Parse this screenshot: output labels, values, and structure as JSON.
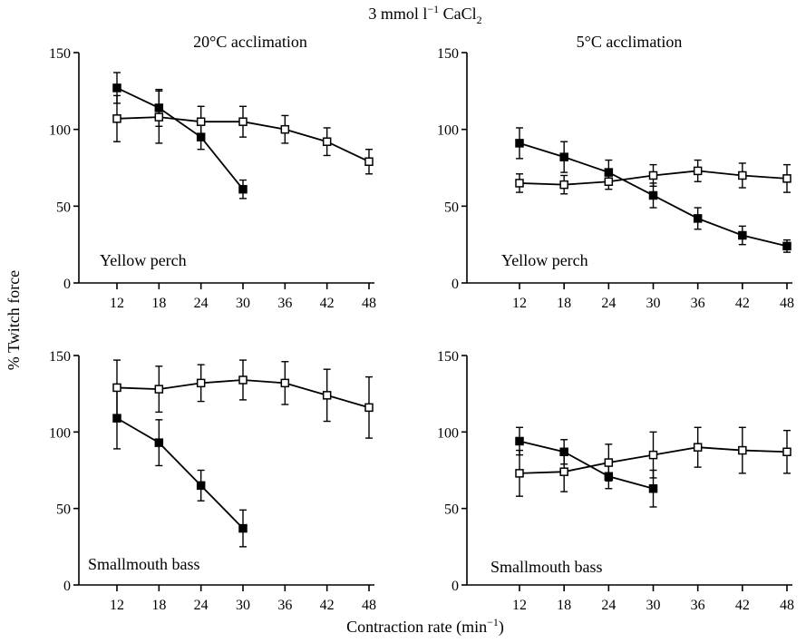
{
  "figure": {
    "title": "3 mmol l",
    "title_sup": "−1",
    "title_suffix": " CaCl",
    "title_sub": "2",
    "ylabel": "% Twitch force",
    "xlabel": "Contraction rate (min",
    "xlabel_sup": "−1",
    "xlabel_suffix": ")",
    "col_titles": [
      "20°C acclimation",
      "5°C acclimation"
    ]
  },
  "chart_data": [
    {
      "type": "line",
      "label": "Yellow perch",
      "column": "20°C acclimation",
      "x": [
        12,
        18,
        24,
        30,
        36,
        42,
        48
      ],
      "ylim": [
        0,
        150
      ],
      "yticks": [
        0,
        50,
        100,
        150
      ],
      "series": [
        {
          "marker": "filled",
          "x": [
            12,
            18,
            24,
            30
          ],
          "y": [
            127,
            114,
            95,
            61
          ],
          "err": [
            10,
            12,
            8,
            6
          ]
        },
        {
          "marker": "open",
          "x": [
            12,
            18,
            24,
            30,
            36,
            42,
            48
          ],
          "y": [
            107,
            108,
            105,
            105,
            100,
            92,
            79
          ],
          "err": [
            15,
            17,
            10,
            10,
            9,
            9,
            8
          ]
        }
      ]
    },
    {
      "type": "line",
      "label": "Yellow perch",
      "column": "5°C acclimation",
      "x": [
        12,
        18,
        24,
        30,
        36,
        42,
        48
      ],
      "ylim": [
        0,
        150
      ],
      "yticks": [
        0,
        50,
        100,
        150
      ],
      "series": [
        {
          "marker": "filled",
          "x": [
            12,
            18,
            24,
            30,
            36,
            42,
            48
          ],
          "y": [
            91,
            82,
            72,
            57,
            42,
            31,
            24
          ],
          "err": [
            10,
            10,
            8,
            8,
            7,
            6,
            4
          ]
        },
        {
          "marker": "open",
          "x": [
            12,
            18,
            24,
            30,
            36,
            42,
            48
          ],
          "y": [
            65,
            64,
            66,
            70,
            73,
            70,
            68
          ],
          "err": [
            6,
            6,
            5,
            7,
            7,
            8,
            9
          ]
        }
      ]
    },
    {
      "type": "line",
      "label": "Smallmouth bass",
      "column": "20°C acclimation",
      "x": [
        12,
        18,
        24,
        30,
        36,
        42,
        48
      ],
      "ylim": [
        0,
        150
      ],
      "yticks": [
        0,
        50,
        100,
        150
      ],
      "series": [
        {
          "marker": "filled",
          "x": [
            12,
            18,
            24,
            30
          ],
          "y": [
            109,
            93,
            65,
            37
          ],
          "err": [
            20,
            15,
            10,
            12
          ]
        },
        {
          "marker": "open",
          "x": [
            12,
            18,
            24,
            30,
            36,
            42,
            48
          ],
          "y": [
            129,
            128,
            132,
            134,
            132,
            124,
            116
          ],
          "err": [
            18,
            15,
            12,
            13,
            14,
            17,
            20
          ]
        }
      ]
    },
    {
      "type": "line",
      "label": "Smallmouth bass",
      "column": "5°C acclimation",
      "x": [
        12,
        18,
        24,
        30,
        36,
        42,
        48
      ],
      "ylim": [
        0,
        150
      ],
      "yticks": [
        0,
        50,
        100,
        150
      ],
      "series": [
        {
          "marker": "filled",
          "x": [
            12,
            18,
            24,
            30
          ],
          "y": [
            94,
            87,
            71,
            63
          ],
          "err": [
            9,
            8,
            8,
            12
          ]
        },
        {
          "marker": "open",
          "x": [
            12,
            18,
            24,
            30,
            36,
            42,
            48
          ],
          "y": [
            73,
            74,
            80,
            85,
            90,
            88,
            87
          ],
          "err": [
            15,
            13,
            12,
            15,
            13,
            15,
            14
          ]
        }
      ]
    }
  ]
}
